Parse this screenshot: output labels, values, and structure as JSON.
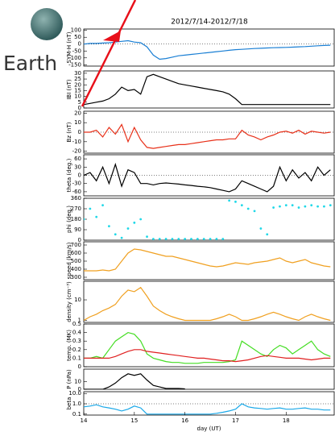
{
  "chart_data": [
    {
      "type": "line",
      "title": "2012/7/14-2012/7/18",
      "annotation": "Earth",
      "ylabel": "SYM-H (nT)",
      "xlim": [
        14,
        18.95
      ],
      "x": [
        14,
        14.125,
        14.25,
        14.375,
        14.5,
        14.625,
        14.75,
        14.875,
        15,
        15.125,
        15.25,
        15.375,
        15.5,
        15.625,
        15.75,
        15.875,
        16,
        16.125,
        16.25,
        16.375,
        16.5,
        16.625,
        16.75,
        16.875,
        17,
        17.125,
        17.25,
        17.375,
        17.5,
        17.625,
        17.75,
        17.875,
        18,
        18.125,
        18.25,
        18.375,
        18.5,
        18.625,
        18.75,
        18.875
      ],
      "ylim": [
        -160,
        110
      ],
      "yticks": [
        -150,
        -100,
        -50,
        0,
        50,
        100
      ],
      "hlines": [
        0
      ],
      "series": [
        {
          "color": "#1a7fd4",
          "values": [
            0,
            5,
            5,
            8,
            10,
            15,
            20,
            25,
            15,
            10,
            -20,
            -80,
            -110,
            -105,
            -95,
            -85,
            -80,
            -75,
            -70,
            -65,
            -60,
            -55,
            -50,
            -45,
            -40,
            -38,
            -35,
            -32,
            -30,
            -28,
            -26,
            -25,
            -24,
            -22,
            -20,
            -18,
            -15,
            -12,
            -10,
            -8
          ]
        }
      ]
    },
    {
      "type": "line",
      "ylabel": "IBI (nT)",
      "xlim": [
        14,
        18.95
      ],
      "x": [
        14,
        14.125,
        14.25,
        14.375,
        14.5,
        14.625,
        14.75,
        14.875,
        15,
        15.125,
        15.25,
        15.375,
        15.5,
        15.625,
        15.75,
        15.875,
        16,
        16.125,
        16.25,
        16.375,
        16.5,
        16.625,
        16.75,
        16.875,
        17,
        17.125,
        17.25,
        17.375,
        17.5,
        17.625,
        17.75,
        17.875,
        18,
        18.125,
        18.25,
        18.375,
        18.5,
        18.625,
        18.75,
        18.875
      ],
      "ylim": [
        0,
        32
      ],
      "yticks": [
        0,
        5,
        10,
        15,
        20,
        25,
        30
      ],
      "hlines": [],
      "series": [
        {
          "color": "#000000",
          "values": [
            3,
            4,
            5,
            6,
            8,
            12,
            18,
            15,
            16,
            12,
            27,
            29,
            27,
            25,
            23,
            21,
            20,
            19,
            18,
            17,
            16,
            15,
            14,
            12,
            8,
            3,
            3,
            3,
            3,
            3,
            3,
            3,
            3,
            3,
            3,
            3,
            3,
            3,
            3,
            3
          ]
        }
      ]
    },
    {
      "type": "line",
      "ylabel": "Bz (nT)",
      "xlim": [
        14,
        18.95
      ],
      "x": [
        14,
        14.125,
        14.25,
        14.375,
        14.5,
        14.625,
        14.75,
        14.875,
        15,
        15.125,
        15.25,
        15.375,
        15.5,
        15.625,
        15.75,
        15.875,
        16,
        16.125,
        16.25,
        16.375,
        16.5,
        16.625,
        16.75,
        16.875,
        17,
        17.125,
        17.25,
        17.375,
        17.5,
        17.625,
        17.75,
        17.875,
        18,
        18.125,
        18.25,
        18.375,
        18.5,
        18.625,
        18.75,
        18.875
      ],
      "ylim": [
        -22,
        22
      ],
      "yticks": [
        -20,
        -10,
        0,
        10,
        20
      ],
      "hlines": [
        0
      ],
      "series": [
        {
          "color": "#e8311a",
          "values": [
            0,
            0,
            2,
            -5,
            5,
            -2,
            8,
            -10,
            5,
            -8,
            -16,
            -17,
            -16,
            -15,
            -14,
            -13,
            -13,
            -12,
            -11,
            -10,
            -9,
            -8,
            -8,
            -7,
            -7,
            2,
            -3,
            -5,
            -8,
            -5,
            -3,
            0,
            1,
            -1,
            2,
            -2,
            1,
            0,
            -1,
            0
          ]
        }
      ]
    },
    {
      "type": "line",
      "ylabel": "theta (deg.)",
      "xlim": [
        14,
        18.95
      ],
      "x": [
        14,
        14.125,
        14.25,
        14.375,
        14.5,
        14.625,
        14.75,
        14.875,
        15,
        15.125,
        15.25,
        15.375,
        15.5,
        15.625,
        15.75,
        15.875,
        16,
        16.125,
        16.25,
        16.375,
        16.5,
        16.625,
        16.75,
        16.875,
        17,
        17.125,
        17.25,
        17.375,
        17.5,
        17.625,
        17.75,
        17.875,
        18,
        18.125,
        18.25,
        18.375,
        18.5,
        18.625,
        18.75,
        18.875
      ],
      "ylim": [
        -75,
        75
      ],
      "yticks": [
        -60,
        -30,
        0,
        30,
        60
      ],
      "hlines": [
        0
      ],
      "series": [
        {
          "color": "#000000",
          "values": [
            0,
            10,
            -20,
            30,
            -30,
            40,
            -40,
            20,
            10,
            -30,
            -30,
            -35,
            -30,
            -28,
            -30,
            -32,
            -35,
            -37,
            -40,
            -42,
            -45,
            -50,
            -55,
            -60,
            -50,
            -20,
            -30,
            -40,
            -50,
            -60,
            -40,
            30,
            -20,
            20,
            -10,
            10,
            -20,
            30,
            0,
            20
          ]
        }
      ]
    },
    {
      "type": "scatter",
      "ylabel": "phi (deg.)",
      "xlim": [
        14,
        18.95
      ],
      "x": [
        14,
        14.125,
        14.25,
        14.375,
        14.5,
        14.625,
        14.75,
        14.875,
        15,
        15.125,
        15.25,
        15.375,
        15.5,
        15.625,
        15.75,
        15.875,
        16,
        16.125,
        16.25,
        16.375,
        16.5,
        16.625,
        16.75,
        16.875,
        17,
        17.125,
        17.25,
        17.375,
        17.5,
        17.625,
        17.75,
        17.875,
        18,
        18.125,
        18.25,
        18.375,
        18.5,
        18.625,
        18.75,
        18.875
      ],
      "ylim": [
        0,
        360
      ],
      "yticks": [
        0,
        90,
        180,
        270,
        360
      ],
      "hlines": [],
      "series": [
        {
          "color": "#20d8e8",
          "values": [
            180,
            270,
            200,
            300,
            120,
            50,
            20,
            100,
            150,
            180,
            30,
            10,
            10,
            10,
            10,
            10,
            10,
            10,
            10,
            10,
            10,
            10,
            10,
            340,
            330,
            300,
            270,
            250,
            100,
            50,
            280,
            290,
            300,
            300,
            280,
            290,
            300,
            290,
            290,
            300
          ]
        }
      ]
    },
    {
      "type": "line",
      "ylabel": "speed (km/s)",
      "xlim": [
        14,
        18.95
      ],
      "x": [
        14,
        14.125,
        14.25,
        14.375,
        14.5,
        14.625,
        14.75,
        14.875,
        15,
        15.125,
        15.25,
        15.375,
        15.5,
        15.625,
        15.75,
        15.875,
        16,
        16.125,
        16.25,
        16.375,
        16.5,
        16.625,
        16.75,
        16.875,
        17,
        17.125,
        17.25,
        17.375,
        17.5,
        17.625,
        17.75,
        17.875,
        18,
        18.125,
        18.25,
        18.375,
        18.5,
        18.625,
        18.75,
        18.875
      ],
      "ylim": [
        270,
        740
      ],
      "yticks": [
        300,
        400,
        500,
        600,
        700
      ],
      "hlines": [],
      "series": [
        {
          "color": "#f0a020",
          "values": [
            380,
            380,
            380,
            390,
            380,
            400,
            500,
            600,
            650,
            640,
            620,
            600,
            580,
            560,
            560,
            540,
            520,
            500,
            480,
            460,
            440,
            430,
            440,
            460,
            480,
            470,
            460,
            480,
            490,
            500,
            520,
            540,
            500,
            480,
            500,
            520,
            480,
            460,
            440,
            430
          ]
        }
      ]
    },
    {
      "type": "line",
      "ylabel": "density (cm⁻³)",
      "log": true,
      "xlim": [
        14,
        18.95
      ],
      "x": [
        14,
        14.125,
        14.25,
        14.375,
        14.5,
        14.625,
        14.75,
        14.875,
        15,
        15.125,
        15.25,
        15.375,
        15.5,
        15.625,
        15.75,
        15.875,
        16,
        16.125,
        16.25,
        16.375,
        16.5,
        16.625,
        16.75,
        16.875,
        17,
        17.125,
        17.25,
        17.375,
        17.5,
        17.625,
        17.75,
        17.875,
        18,
        18.125,
        18.25,
        18.375,
        18.5,
        18.625,
        18.75,
        18.875
      ],
      "ylim": [
        0.8,
        80
      ],
      "yticks": [
        1,
        10
      ],
      "hlines": [],
      "series": [
        {
          "color": "#f0a020",
          "values": [
            1,
            1.5,
            2,
            3,
            4,
            6,
            15,
            30,
            25,
            40,
            15,
            5,
            3,
            2,
            1.5,
            1.2,
            1,
            1,
            1,
            1,
            1,
            1.2,
            1.5,
            2,
            1.5,
            1,
            1,
            1.2,
            1.5,
            2,
            2.5,
            2,
            1.5,
            1.2,
            1,
            1.5,
            2,
            1.5,
            1.2,
            1
          ]
        }
      ]
    },
    {
      "type": "line",
      "ylabel": "temp. (MK)",
      "xlim": [
        14,
        18.95
      ],
      "x": [
        14,
        14.125,
        14.25,
        14.375,
        14.5,
        14.625,
        14.75,
        14.875,
        15,
        15.125,
        15.25,
        15.375,
        15.5,
        15.625,
        15.75,
        15.875,
        16,
        16.125,
        16.25,
        16.375,
        16.5,
        16.625,
        16.75,
        16.875,
        17,
        17.125,
        17.25,
        17.375,
        17.5,
        17.625,
        17.75,
        17.875,
        18,
        18.125,
        18.25,
        18.375,
        18.5,
        18.625,
        18.75,
        18.875
      ],
      "ylim": [
        0,
        0.5
      ],
      "yticks": [
        0,
        0.1,
        0.2,
        0.3,
        0.4,
        0.5
      ],
      "hlines": [],
      "series": [
        {
          "color": "#44dd22",
          "values": [
            0.1,
            0.1,
            0.12,
            0.1,
            0.2,
            0.3,
            0.35,
            0.4,
            0.38,
            0.3,
            0.15,
            0.1,
            0.08,
            0.06,
            0.05,
            0.05,
            0.04,
            0.04,
            0.04,
            0.05,
            0.05,
            0.05,
            0.05,
            0.06,
            0.08,
            0.3,
            0.25,
            0.2,
            0.15,
            0.12,
            0.2,
            0.25,
            0.22,
            0.15,
            0.2,
            0.25,
            0.3,
            0.2,
            0.15,
            0.12
          ]
        },
        {
          "color": "#e02020",
          "values": [
            0.1,
            0.1,
            0.1,
            0.1,
            0.1,
            0.12,
            0.15,
            0.18,
            0.2,
            0.2,
            0.18,
            0.17,
            0.16,
            0.15,
            0.14,
            0.13,
            0.12,
            0.11,
            0.1,
            0.1,
            0.09,
            0.08,
            0.07,
            0.07,
            0.06,
            0.07,
            0.08,
            0.1,
            0.12,
            0.13,
            0.12,
            0.11,
            0.1,
            0.1,
            0.1,
            0.09,
            0.08,
            0.09,
            0.1,
            0.1
          ]
        }
      ]
    },
    {
      "type": "line",
      "ylabel": "P (nPa)",
      "xlim": [
        14,
        18.95
      ],
      "x": [
        14,
        14.125,
        14.25,
        14.375,
        14.5,
        14.625,
        14.75,
        14.875,
        15,
        15.125,
        15.25,
        15.375,
        15.5,
        15.625,
        15.75,
        15.875,
        16,
        16.125,
        16.25,
        16.375,
        16.5,
        16.625,
        16.75,
        16.875,
        17,
        17.125,
        17.25,
        17.375,
        17.5,
        17.625,
        17.75,
        17.875,
        18,
        18.125,
        18.25,
        18.375,
        18.5,
        18.625,
        18.75,
        18.875
      ],
      "ylim": [
        0,
        26
      ],
      "yticks": [
        0,
        10
      ],
      "hlines": [],
      "series": [
        {
          "color": "#000000",
          "values": [
            0,
            0,
            0,
            0,
            3,
            8,
            15,
            20,
            18,
            20,
            12,
            5,
            3,
            1,
            1,
            1,
            0.5,
            null,
            null,
            null,
            null,
            null,
            null,
            null,
            null,
            null,
            null,
            null,
            null,
            null,
            null,
            null,
            null,
            null,
            null,
            null,
            null,
            null,
            null,
            null
          ]
        }
      ]
    },
    {
      "type": "line",
      "ylabel": "beta",
      "log": true,
      "xlim": [
        14,
        18.95
      ],
      "xlabel": "day (UT)",
      "xticks": [
        14,
        15,
        16,
        17,
        18
      ],
      "x": [
        14,
        14.125,
        14.25,
        14.375,
        14.5,
        14.625,
        14.75,
        14.875,
        15,
        15.125,
        15.25,
        15.375,
        15.5,
        15.625,
        15.75,
        15.875,
        16,
        16.125,
        16.25,
        16.375,
        16.5,
        16.625,
        16.75,
        16.875,
        17,
        17.125,
        17.25,
        17.375,
        17.5,
        17.625,
        17.75,
        17.875,
        18,
        18.125,
        18.25,
        18.375,
        18.5,
        18.625,
        18.75,
        18.875
      ],
      "ylim": [
        0.08,
        15
      ],
      "yticks": [
        0.1,
        {
          "value": 1,
          "label": "1.0"
        },
        {
          "value": 10,
          "label": "10.0"
        }
      ],
      "hlines": [
        1
      ],
      "series": [
        {
          "color": "#1aa8e8",
          "values": [
            0.5,
            0.6,
            0.8,
            0.5,
            0.4,
            0.3,
            0.2,
            0.3,
            0.6,
            0.4,
            0.1,
            0.1,
            0.1,
            0.1,
            0.1,
            0.1,
            0.1,
            0.1,
            0.1,
            0.1,
            0.1,
            0.12,
            0.15,
            0.2,
            0.3,
            1.0,
            0.5,
            0.4,
            0.35,
            0.3,
            0.35,
            0.4,
            0.3,
            0.3,
            0.35,
            0.4,
            0.3,
            0.3,
            0.25,
            0.25
          ]
        }
      ]
    }
  ]
}
